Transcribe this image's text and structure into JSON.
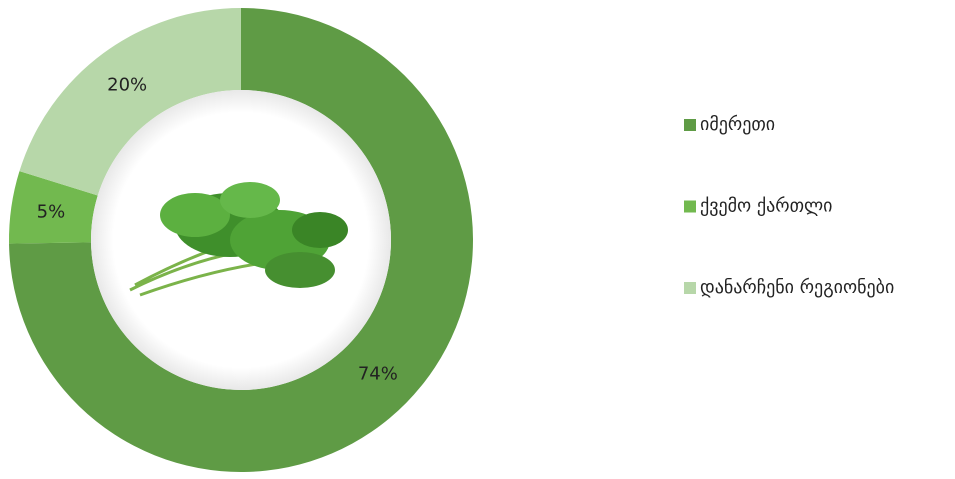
{
  "chart_data": {
    "type": "donut",
    "categories": [
      "იმერეთი",
      "ქვემო ქართლი",
      "დანარჩენი რეგიონები"
    ],
    "values": [
      74,
      5,
      20
    ],
    "value_labels": [
      "74%",
      "5%",
      "20%"
    ],
    "colors": [
      "#5f9b45",
      "#72b94f",
      "#b7d7a9"
    ],
    "legend": "right"
  }
}
